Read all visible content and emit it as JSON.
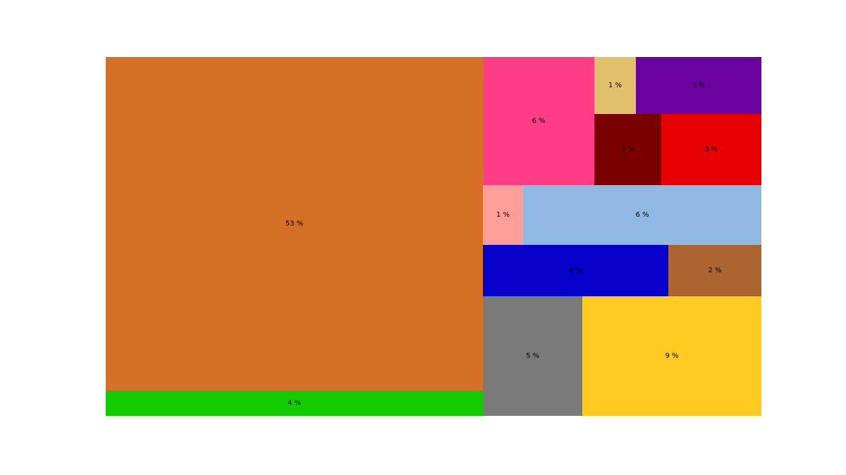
{
  "chart_data": {
    "type": "treemap",
    "title": "",
    "tiles": [
      {
        "label": "53 %",
        "value": 53,
        "color": "#D66F27"
      },
      {
        "label": "4 %",
        "value": 4,
        "color": "#12CB00"
      },
      {
        "label": "6 %",
        "value": 6,
        "color": "#FF3D87"
      },
      {
        "label": "1 %",
        "value": 1,
        "color": "#E0C06B"
      },
      {
        "label": "3 %",
        "value": 3,
        "color": "#6A009E"
      },
      {
        "label": "2 %",
        "value": 2,
        "color": "#7A0000"
      },
      {
        "label": "3 %",
        "value": 3,
        "color": "#E60000"
      },
      {
        "label": "1 %",
        "value": 1,
        "color": "#FF9D98"
      },
      {
        "label": "6 %",
        "value": 6,
        "color": "#8FB9E0"
      },
      {
        "label": "4 %",
        "value": 4,
        "color": "#0600CB"
      },
      {
        "label": "2 %",
        "value": 2,
        "color": "#AC6431"
      },
      {
        "label": "5 %",
        "value": 5,
        "color": "#7A7A7A"
      },
      {
        "label": "9 %",
        "value": 9,
        "color": "#FFCA22"
      }
    ]
  }
}
